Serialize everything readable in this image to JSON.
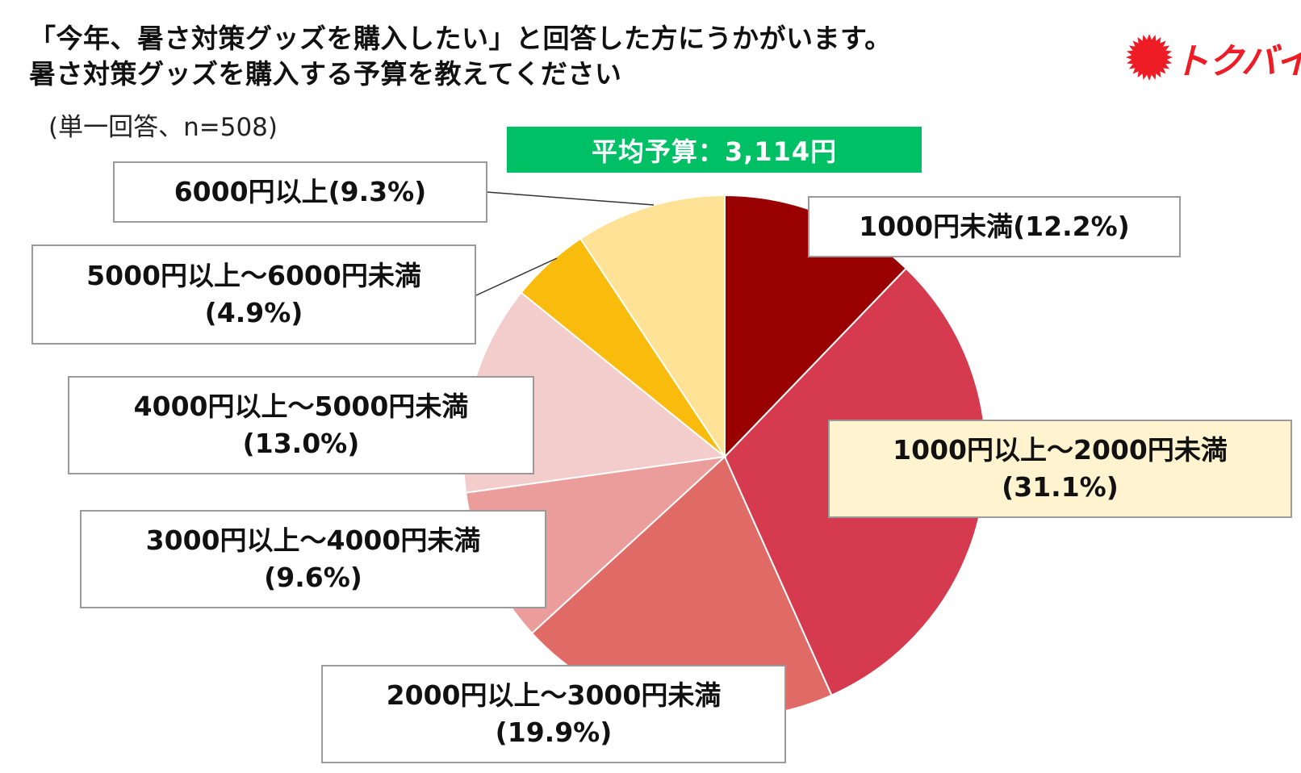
{
  "header": {
    "title_line1": "「今年、暑さ対策グッズを購入したい」と回答した方にうかがいます。",
    "title_line2": "暑さ対策グッズを購入する予算を教えてください",
    "subtitle": "(単一回答、n=508)",
    "average_budget": "平均予算：3,114円",
    "average_color": "#00c066"
  },
  "logo": {
    "text": "トクバイ",
    "icon": "red-sunburst-icon",
    "color": "#ee1c25"
  },
  "chart_data": {
    "type": "pie",
    "title": "暑さ対策グッズを購入する予算",
    "start": "12 o'clock, clockwise",
    "slices": [
      {
        "label": "1000円未満",
        "pct_label": "(12.2%)",
        "value": 12.2,
        "color": "#990000"
      },
      {
        "label": "1000円以上～2000円未満",
        "pct_label": "(31.1%)",
        "value": 31.1,
        "color": "#d63a4f",
        "highlight": true
      },
      {
        "label": "2000円以上～3000円未満",
        "pct_label": "(19.9%)",
        "value": 19.9,
        "color": "#e06a66"
      },
      {
        "label": "3000円以上～4000円未満",
        "pct_label": "(9.6%)",
        "value": 9.6,
        "color": "#eb9d9b"
      },
      {
        "label": "4000円以上～5000円未満",
        "pct_label": "(13.0%)",
        "value": 13.0,
        "color": "#f3cccc"
      },
      {
        "label": "5000円以上～6000円未満",
        "pct_label": "(4.9%)",
        "value": 4.9,
        "color": "#f9bb0c"
      },
      {
        "label": "6000円以上",
        "pct_label": "(9.3%)",
        "value": 9.3,
        "color": "#ffe295"
      }
    ]
  }
}
